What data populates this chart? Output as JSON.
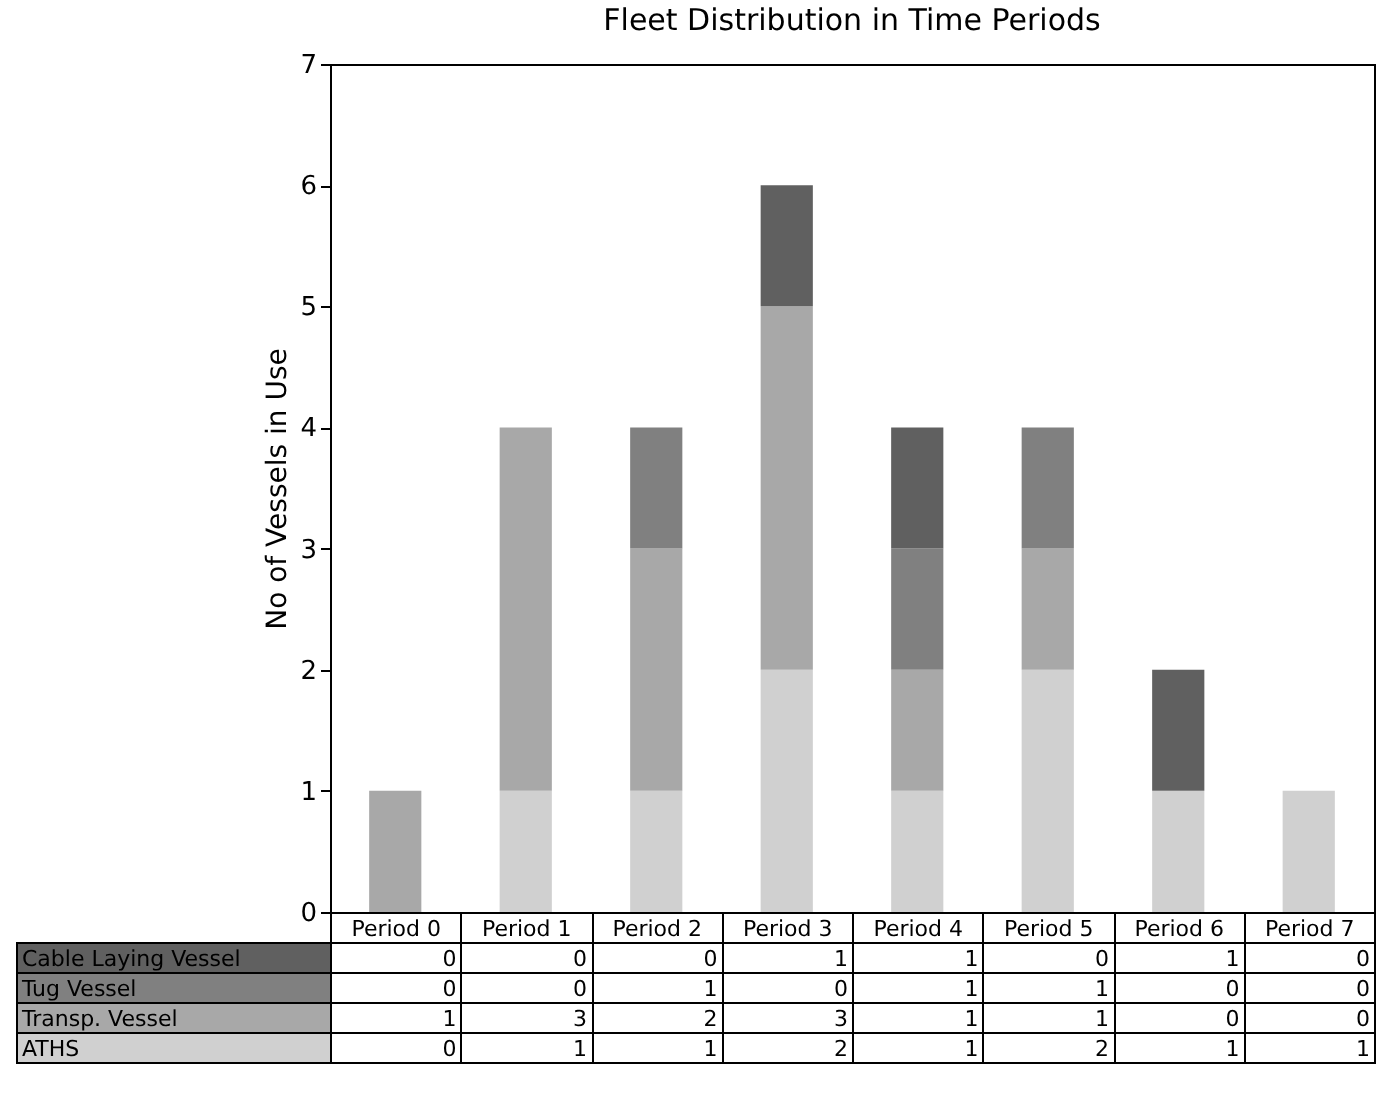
{
  "chart_data": {
    "type": "bar",
    "title": "Fleet Distribution in Time Periods",
    "ylabel": "No of Vessels in Use",
    "categories": [
      "Period 0",
      "Period 1",
      "Period 2",
      "Period 3",
      "Period 4",
      "Period 5",
      "Period 6",
      "Period 7"
    ],
    "stacked": true,
    "data_labels": true,
    "ylim": [
      0,
      7
    ],
    "yticks": [
      0,
      1,
      2,
      3,
      4,
      5,
      6,
      7
    ],
    "grid": false,
    "series": [
      {
        "name": "ATHS",
        "color": "#d0d0d0",
        "values": [
          0,
          1,
          1,
          2,
          1,
          2,
          1,
          1
        ]
      },
      {
        "name": "Transp. Vessel",
        "color": "#a8a8a8",
        "values": [
          1,
          3,
          2,
          3,
          1,
          1,
          0,
          0
        ]
      },
      {
        "name": "Tug Vessel",
        "color": "#808080",
        "values": [
          0,
          0,
          1,
          0,
          1,
          1,
          0,
          0
        ]
      },
      {
        "name": "Cable Laying Vessel",
        "color": "#606060",
        "values": [
          0,
          0,
          0,
          1,
          1,
          0,
          1,
          0
        ]
      }
    ]
  }
}
